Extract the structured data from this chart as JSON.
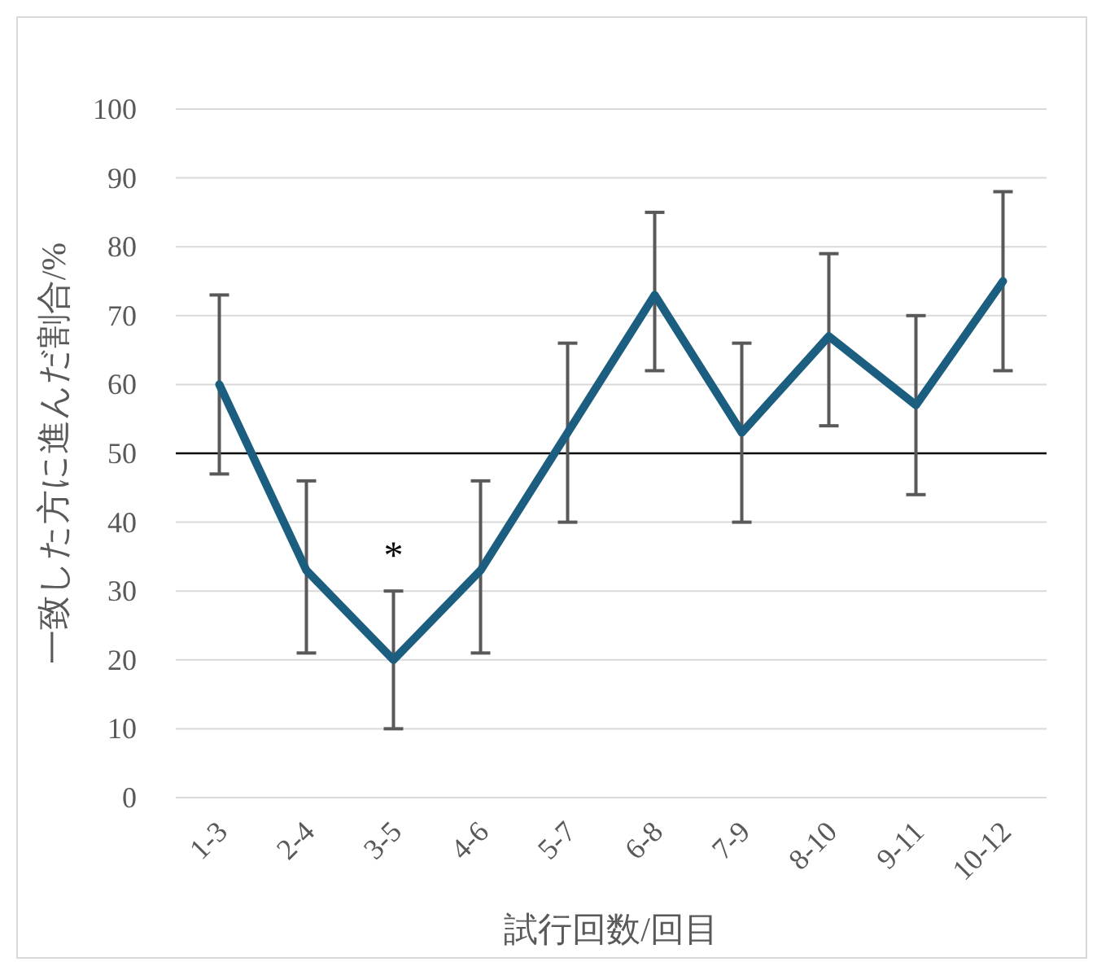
{
  "chart_data": {
    "type": "line",
    "xlabel": "試行回数/回目",
    "ylabel": "一致した方に進んだ割合/%",
    "categories": [
      "1-3",
      "2-4",
      "3-5",
      "4-6",
      "5-7",
      "6-8",
      "7-9",
      "8-10",
      "9-11",
      "10-12"
    ],
    "series": [
      {
        "color": "#1b5e80",
        "values": [
          60,
          33,
          20,
          33,
          53,
          73,
          53,
          67,
          57,
          75
        ],
        "errors": [
          [
            47,
            73
          ],
          [
            21,
            46
          ],
          [
            10,
            30
          ],
          [
            21,
            46
          ],
          [
            40,
            66
          ],
          [
            62,
            85
          ],
          [
            40,
            66
          ],
          [
            54,
            79
          ],
          [
            44,
            70
          ],
          [
            62,
            88
          ]
        ]
      }
    ],
    "ylim": [
      0,
      100
    ],
    "yticks": [
      0,
      10,
      20,
      30,
      40,
      50,
      60,
      70,
      80,
      90,
      100
    ],
    "grid": "y",
    "ref_lines": [
      {
        "axis": "y",
        "value": 50,
        "color": "#000000"
      }
    ],
    "annotations": [
      {
        "text": "*",
        "x": "3-5",
        "y": 30
      }
    ]
  }
}
